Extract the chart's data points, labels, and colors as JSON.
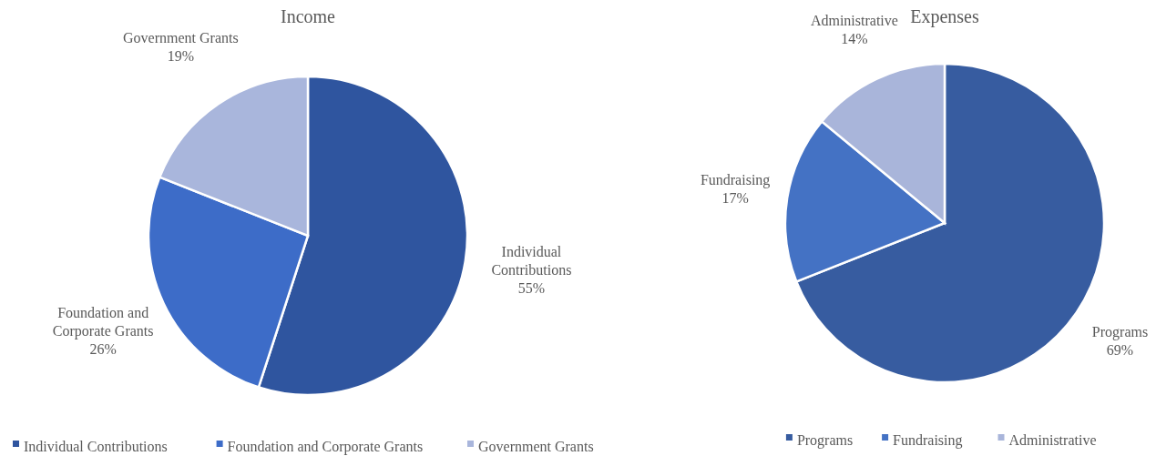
{
  "chart_data": [
    {
      "type": "pie",
      "title": "Income",
      "categories": [
        "Individual Contributions",
        "Foundation and Corporate Grants",
        "Government Grants"
      ],
      "values": [
        55,
        26,
        19
      ],
      "colors": [
        "#2f559f",
        "#3d6cc8",
        "#a9b6dc"
      ],
      "value_labels": [
        "55%",
        "26%",
        "19%"
      ],
      "legend": "bottom"
    },
    {
      "type": "pie",
      "title": "Expenses",
      "categories": [
        "Programs",
        "Fundraising",
        "Administrative"
      ],
      "values": [
        69,
        17,
        14
      ],
      "colors": [
        "#375ca0",
        "#4472c4",
        "#a9b5da"
      ],
      "value_labels": [
        "69%",
        "17%",
        "14%"
      ],
      "legend": "bottom"
    }
  ]
}
